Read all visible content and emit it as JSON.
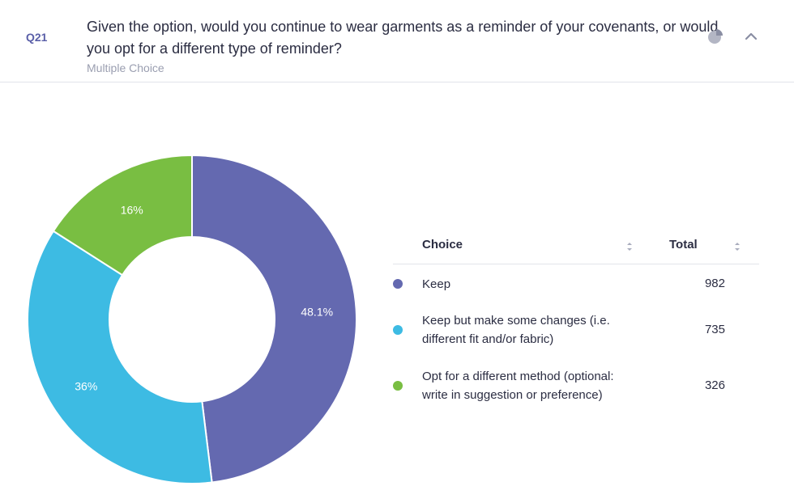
{
  "question": {
    "number": "Q21",
    "text": "Given the option, would you continue to wear garments as a reminder of your covenants, or would you opt for a different type of reminder?",
    "type": "Multiple Choice"
  },
  "icons": {
    "chart_toggle": "pie-chart-icon",
    "collapse": "chevron-up-icon"
  },
  "table": {
    "col_choice": "Choice",
    "col_total": "Total",
    "rows": [
      {
        "label": "Keep",
        "total": "982",
        "color": "#6469b0"
      },
      {
        "label": "Keep but make some changes (i.e. different fit and/or fabric)",
        "total": "735",
        "color": "#3dbbe3"
      },
      {
        "label": "Opt for a different method (optional: write in suggestion or preference)",
        "total": "326",
        "color": "#79be42"
      }
    ]
  },
  "chart_data": {
    "type": "pie",
    "donut": true,
    "categories": [
      "Keep",
      "Keep but make some changes (i.e. different fit and/or fabric)",
      "Opt for a different method (optional: write in suggestion or preference)"
    ],
    "values": [
      982,
      735,
      326
    ],
    "labels": [
      "48.1%",
      "36%",
      "16%"
    ],
    "colors": [
      "#6469b0",
      "#3dbbe3",
      "#79be42"
    ]
  }
}
